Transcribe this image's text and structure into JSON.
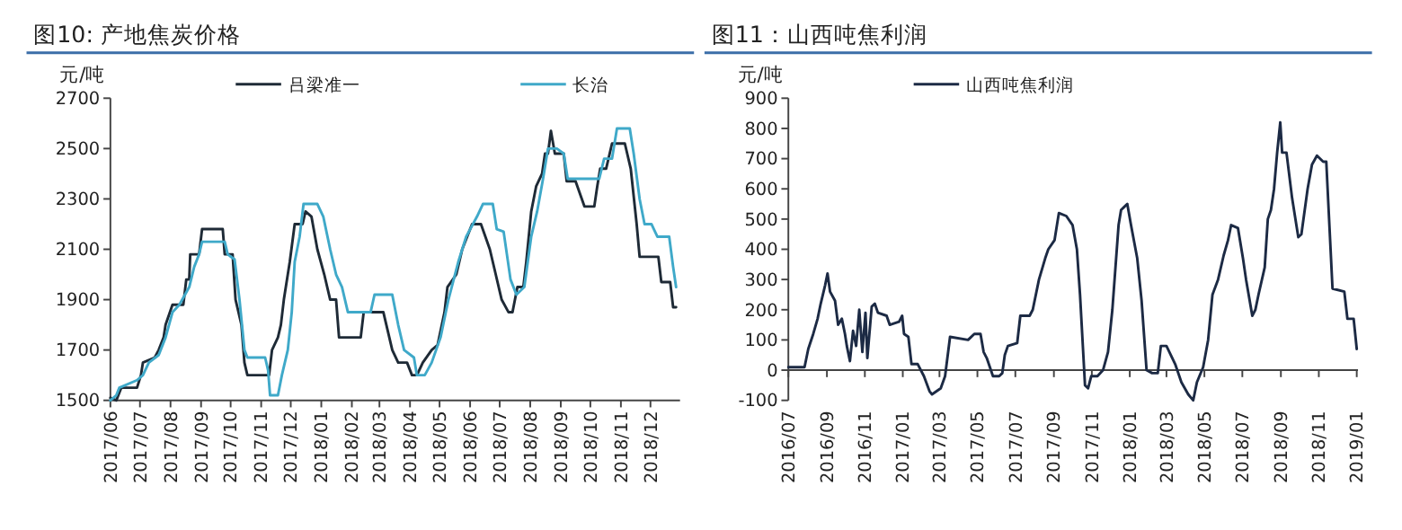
{
  "chart_data": [
    {
      "type": "line",
      "title": "图10: 产地焦炭价格",
      "ylabel": "元/吨",
      "legend": "top",
      "grid": false,
      "xlim": [
        "2017-06-01",
        "2018-12-31"
      ],
      "ylim": [
        1500,
        2700
      ],
      "yticks": [
        1500,
        1700,
        1900,
        2100,
        2300,
        2500,
        2700
      ],
      "xticks": [
        {
          "value": "2017-06-01",
          "label": "2017/06"
        },
        {
          "value": "2017-07-01",
          "label": "2017/07"
        },
        {
          "value": "2017-08-01",
          "label": "2017/08"
        },
        {
          "value": "2017-09-01",
          "label": "2017/09"
        },
        {
          "value": "2017-10-01",
          "label": "2017/10"
        },
        {
          "value": "2017-11-01",
          "label": "2017/11"
        },
        {
          "value": "2017-12-01",
          "label": "2017/12"
        },
        {
          "value": "2018-01-01",
          "label": "2018/01"
        },
        {
          "value": "2018-02-01",
          "label": "2018/02"
        },
        {
          "value": "2018-03-01",
          "label": "2018/03"
        },
        {
          "value": "2018-04-01",
          "label": "2018/04"
        },
        {
          "value": "2018-05-01",
          "label": "2018/05"
        },
        {
          "value": "2018-06-01",
          "label": "2018/06"
        },
        {
          "value": "2018-07-01",
          "label": "2018/07"
        },
        {
          "value": "2018-08-01",
          "label": "2018/08"
        },
        {
          "value": "2018-09-01",
          "label": "2018/09"
        },
        {
          "value": "2018-10-01",
          "label": "2018/10"
        },
        {
          "value": "2018-11-01",
          "label": "2018/11"
        },
        {
          "value": "2018-12-01",
          "label": "2018/12"
        }
      ],
      "series": [
        {
          "name": "吕梁准一",
          "color": "#1e2a36",
          "x": [
            "2017-06-01",
            "2017-06-07",
            "2017-06-12",
            "2017-06-28",
            "2017-07-02",
            "2017-07-04",
            "2017-07-16",
            "2017-07-20",
            "2017-07-25",
            "2017-07-27",
            "2017-08-03",
            "2017-08-14",
            "2017-08-17",
            "2017-08-20",
            "2017-08-21",
            "2017-08-30",
            "2017-09-02",
            "2017-09-23",
            "2017-09-25",
            "2017-10-03",
            "2017-10-06",
            "2017-10-12",
            "2017-10-15",
            "2017-10-18",
            "2017-11-09",
            "2017-11-12",
            "2017-11-18",
            "2017-11-21",
            "2017-11-24",
            "2017-11-30",
            "2017-12-05",
            "2017-12-13",
            "2017-12-16",
            "2017-12-22",
            "2017-12-28",
            "2018-01-04",
            "2018-01-10",
            "2018-01-16",
            "2018-01-19",
            "2018-02-10",
            "2018-02-13",
            "2018-03-05",
            "2018-03-08",
            "2018-03-14",
            "2018-03-20",
            "2018-03-29",
            "2018-04-03",
            "2018-04-08",
            "2018-04-14",
            "2018-04-23",
            "2018-04-29",
            "2018-05-06",
            "2018-05-09",
            "2018-05-18",
            "2018-05-24",
            "2018-06-03",
            "2018-06-12",
            "2018-06-21",
            "2018-06-27",
            "2018-07-03",
            "2018-07-10",
            "2018-07-14",
            "2018-07-19",
            "2018-07-25",
            "2018-07-28",
            "2018-08-02",
            "2018-08-07",
            "2018-08-13",
            "2018-08-16",
            "2018-08-19",
            "2018-08-22",
            "2018-08-26",
            "2018-09-04",
            "2018-09-07",
            "2018-09-16",
            "2018-09-25",
            "2018-10-05",
            "2018-10-08",
            "2018-10-11",
            "2018-10-17",
            "2018-10-23",
            "2018-11-05",
            "2018-11-11",
            "2018-11-17",
            "2018-11-20",
            "2018-12-09",
            "2018-12-12",
            "2018-12-21",
            "2018-12-24",
            "2018-12-27"
          ],
          "values": [
            1510,
            1500,
            1550,
            1550,
            1600,
            1650,
            1670,
            1700,
            1750,
            1800,
            1880,
            1880,
            1980,
            1980,
            2080,
            2080,
            2180,
            2180,
            2080,
            2080,
            1900,
            1800,
            1650,
            1600,
            1600,
            1700,
            1750,
            1800,
            1900,
            2050,
            2200,
            2200,
            2250,
            2230,
            2100,
            2000,
            1900,
            1900,
            1750,
            1750,
            1850,
            1850,
            1800,
            1700,
            1650,
            1650,
            1600,
            1600,
            1650,
            1700,
            1720,
            1850,
            1950,
            2000,
            2100,
            2200,
            2200,
            2100,
            2000,
            1900,
            1850,
            1850,
            1950,
            1950,
            2050,
            2250,
            2350,
            2400,
            2480,
            2480,
            2570,
            2480,
            2480,
            2370,
            2370,
            2270,
            2270,
            2350,
            2420,
            2420,
            2520,
            2520,
            2420,
            2200,
            2070,
            2070,
            1970,
            1970,
            1870,
            1870
          ]
        },
        {
          "name": "长治",
          "color": "#3fa9c9",
          "x": [
            "2017-06-01",
            "2017-06-07",
            "2017-06-10",
            "2017-06-28",
            "2017-07-04",
            "2017-07-10",
            "2017-07-20",
            "2017-07-27",
            "2017-08-03",
            "2017-08-10",
            "2017-08-20",
            "2017-08-25",
            "2017-08-30",
            "2017-09-02",
            "2017-09-25",
            "2017-09-28",
            "2017-10-05",
            "2017-10-10",
            "2017-10-15",
            "2017-10-18",
            "2017-11-05",
            "2017-11-08",
            "2017-11-10",
            "2017-11-18",
            "2017-11-22",
            "2017-11-28",
            "2017-12-02",
            "2017-12-05",
            "2017-12-10",
            "2017-12-14",
            "2017-12-28",
            "2018-01-03",
            "2018-01-10",
            "2018-01-16",
            "2018-01-22",
            "2018-01-28",
            "2018-02-20",
            "2018-02-24",
            "2018-03-14",
            "2018-03-20",
            "2018-03-26",
            "2018-04-05",
            "2018-04-08",
            "2018-04-16",
            "2018-04-23",
            "2018-05-02",
            "2018-05-10",
            "2018-05-20",
            "2018-05-28",
            "2018-06-08",
            "2018-06-14",
            "2018-06-24",
            "2018-06-28",
            "2018-07-05",
            "2018-07-12",
            "2018-07-18",
            "2018-07-26",
            "2018-08-02",
            "2018-08-08",
            "2018-08-14",
            "2018-08-19",
            "2018-08-28",
            "2018-09-04",
            "2018-09-08",
            "2018-10-10",
            "2018-10-15",
            "2018-10-23",
            "2018-10-28",
            "2018-11-10",
            "2018-11-14",
            "2018-11-20",
            "2018-11-25",
            "2018-12-02",
            "2018-12-08",
            "2018-12-20",
            "2018-12-24",
            "2018-12-27"
          ],
          "values": [
            1500,
            1520,
            1550,
            1580,
            1600,
            1650,
            1680,
            1750,
            1850,
            1880,
            1950,
            2030,
            2080,
            2130,
            2130,
            2080,
            2060,
            1900,
            1700,
            1670,
            1670,
            1620,
            1520,
            1520,
            1600,
            1700,
            1850,
            2050,
            2150,
            2280,
            2280,
            2230,
            2100,
            2000,
            1950,
            1850,
            1850,
            1920,
            1920,
            1800,
            1700,
            1670,
            1600,
            1600,
            1650,
            1750,
            1900,
            2050,
            2150,
            2230,
            2280,
            2280,
            2180,
            2170,
            1980,
            1920,
            1950,
            2150,
            2250,
            2380,
            2500,
            2500,
            2480,
            2380,
            2380,
            2460,
            2460,
            2580,
            2580,
            2480,
            2300,
            2200,
            2200,
            2150,
            2150,
            2030,
            1950
          ]
        }
      ]
    },
    {
      "type": "line",
      "title": "图11：山西吨焦利润",
      "ylabel": "元/吨",
      "legend": "top",
      "grid": false,
      "xlim": [
        "2016-07-01",
        "2019-01-03"
      ],
      "ylim": [
        -100,
        900
      ],
      "yticks": [
        -100,
        0,
        100,
        200,
        300,
        400,
        500,
        600,
        700,
        800,
        900
      ],
      "xticks": [
        {
          "value": "2016-07-01",
          "label": "2016/07"
        },
        {
          "value": "2016-09-01",
          "label": "2016/09"
        },
        {
          "value": "2016-11-01",
          "label": "2016/11"
        },
        {
          "value": "2017-01-01",
          "label": "2017/01"
        },
        {
          "value": "2017-03-01",
          "label": "2017/03"
        },
        {
          "value": "2017-05-01",
          "label": "2017/05"
        },
        {
          "value": "2017-07-01",
          "label": "2017/07"
        },
        {
          "value": "2017-09-01",
          "label": "2017/09"
        },
        {
          "value": "2017-11-01",
          "label": "2017/11"
        },
        {
          "value": "2018-01-01",
          "label": "2018/01"
        },
        {
          "value": "2018-03-01",
          "label": "2018/03"
        },
        {
          "value": "2018-05-01",
          "label": "2018/05"
        },
        {
          "value": "2018-07-01",
          "label": "2018/07"
        },
        {
          "value": "2018-09-01",
          "label": "2018/09"
        },
        {
          "value": "2018-11-01",
          "label": "2018/11"
        },
        {
          "value": "2019-01-01",
          "label": "2019/01"
        }
      ],
      "series": [
        {
          "name": "山西吨焦利润",
          "color": "#1c2a44",
          "x": [
            "2016-07-01",
            "2016-07-27",
            "2016-08-02",
            "2016-08-10",
            "2016-08-17",
            "2016-08-22",
            "2016-08-29",
            "2016-09-02",
            "2016-09-06",
            "2016-09-14",
            "2016-09-19",
            "2016-09-25",
            "2016-09-30",
            "2016-10-03",
            "2016-10-08",
            "2016-10-13",
            "2016-10-18",
            "2016-10-23",
            "2016-10-28",
            "2016-11-02",
            "2016-11-05",
            "2016-11-12",
            "2016-11-17",
            "2016-11-22",
            "2016-12-06",
            "2016-12-11",
            "2016-12-26",
            "2016-12-31",
            "2017-01-03",
            "2017-01-10",
            "2017-01-15",
            "2017-01-25",
            "2017-02-04",
            "2017-02-13",
            "2017-02-17",
            "2017-03-03",
            "2017-03-10",
            "2017-03-18",
            "2017-04-16",
            "2017-04-26",
            "2017-05-06",
            "2017-05-11",
            "2017-05-16",
            "2017-05-26",
            "2017-06-05",
            "2017-06-10",
            "2017-06-14",
            "2017-06-19",
            "2017-07-04",
            "2017-07-09",
            "2017-07-24",
            "2017-07-29",
            "2017-08-08",
            "2017-08-18",
            "2017-08-23",
            "2017-09-02",
            "2017-09-09",
            "2017-09-21",
            "2017-10-01",
            "2017-10-08",
            "2017-10-13",
            "2017-10-21",
            "2017-10-26",
            "2017-10-31",
            "2017-11-10",
            "2017-11-19",
            "2017-11-27",
            "2017-12-04",
            "2017-12-09",
            "2017-12-14",
            "2017-12-18",
            "2017-12-23",
            "2017-12-28",
            "2018-01-03",
            "2018-01-13",
            "2018-01-20",
            "2018-01-28",
            "2018-02-06",
            "2018-02-15",
            "2018-02-20",
            "2018-03-01",
            "2018-03-15",
            "2018-03-25",
            "2018-04-05",
            "2018-04-13",
            "2018-04-19",
            "2018-04-29",
            "2018-05-07",
            "2018-05-14",
            "2018-05-23",
            "2018-06-01",
            "2018-06-08",
            "2018-06-13",
            "2018-06-24",
            "2018-07-02",
            "2018-07-07",
            "2018-07-17",
            "2018-07-22",
            "2018-07-27",
            "2018-08-06",
            "2018-08-11",
            "2018-08-16",
            "2018-08-21",
            "2018-08-26",
            "2018-08-31",
            "2018-09-03",
            "2018-09-10",
            "2018-09-19",
            "2018-09-29",
            "2018-10-04",
            "2018-10-14",
            "2018-10-21",
            "2018-10-29",
            "2018-11-08",
            "2018-11-13",
            "2018-11-23",
            "2018-12-12",
            "2018-12-17",
            "2018-12-27",
            "2019-01-01"
          ],
          "values": [
            10,
            10,
            70,
            120,
            170,
            220,
            280,
            320,
            260,
            230,
            150,
            170,
            120,
            80,
            30,
            130,
            80,
            200,
            60,
            190,
            40,
            210,
            220,
            190,
            180,
            150,
            160,
            180,
            120,
            110,
            20,
            20,
            -20,
            -70,
            -80,
            -60,
            -20,
            110,
            100,
            120,
            120,
            60,
            40,
            -20,
            -20,
            -10,
            50,
            80,
            90,
            180,
            180,
            200,
            300,
            370,
            400,
            430,
            520,
            510,
            480,
            400,
            250,
            -50,
            -60,
            -20,
            -20,
            0,
            60,
            200,
            340,
            480,
            530,
            540,
            550,
            480,
            370,
            230,
            0,
            -10,
            -10,
            80,
            80,
            20,
            -40,
            -80,
            -100,
            -40,
            10,
            100,
            250,
            300,
            380,
            430,
            480,
            470,
            370,
            300,
            180,
            200,
            250,
            340,
            500,
            530,
            600,
            720,
            820,
            720,
            720,
            570,
            440,
            450,
            600,
            680,
            710,
            690,
            690,
            270,
            260,
            170,
            170,
            70
          ]
        }
      ]
    }
  ]
}
